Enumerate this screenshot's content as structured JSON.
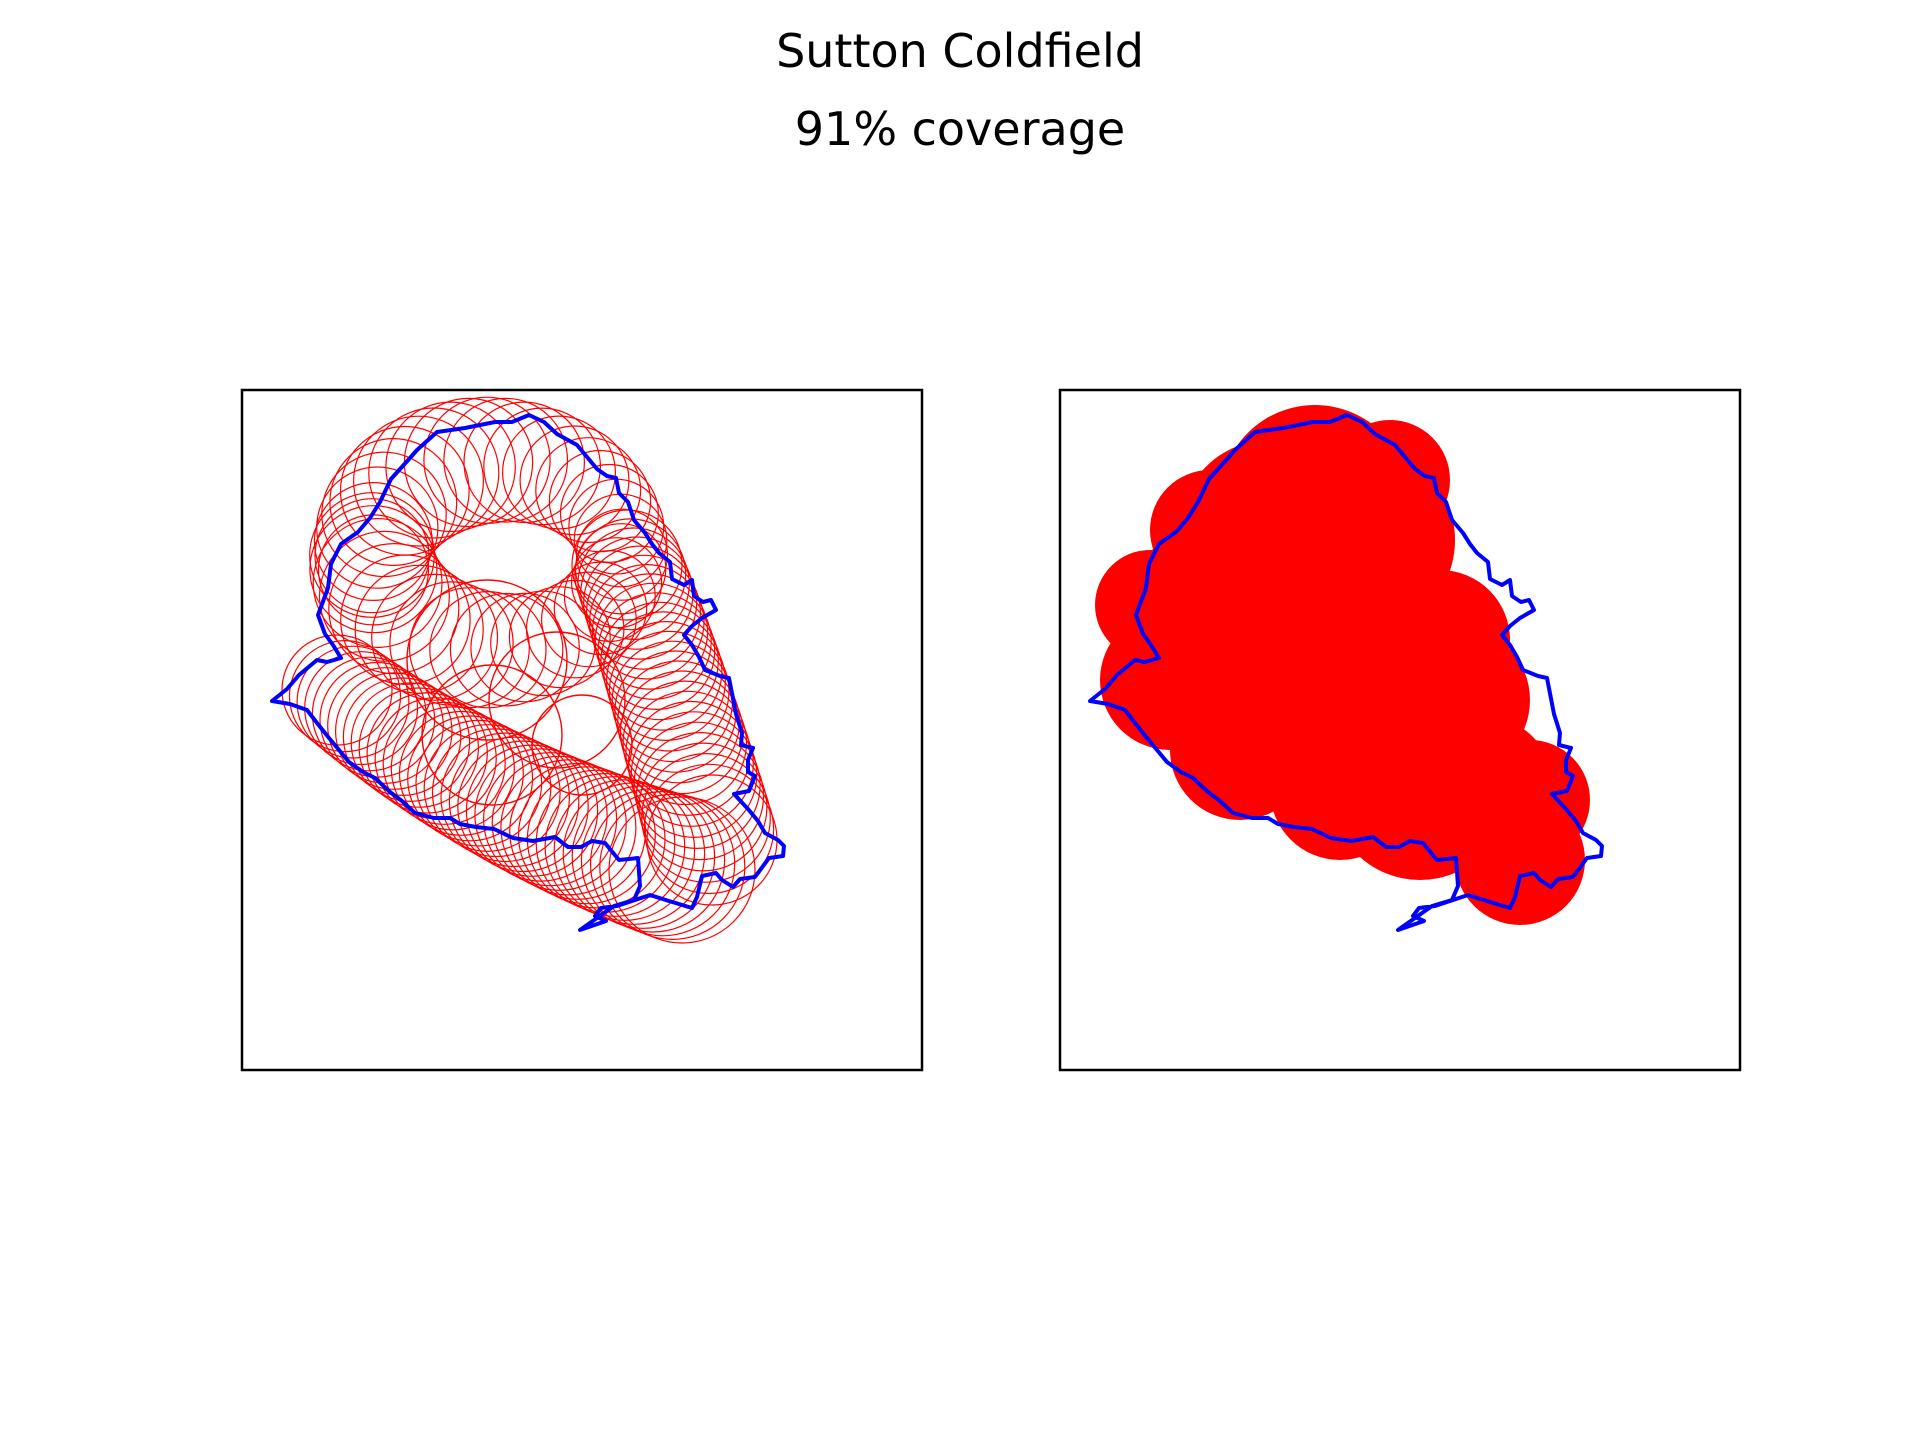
{
  "figure": {
    "title": "Sutton Coldfield",
    "subtitle": "91% coverage"
  },
  "colors": {
    "boundary": "#0000ff",
    "coverage": "#ff0000",
    "frame": "#000000",
    "background": "#ffffff"
  },
  "panels": [
    {
      "name": "circles-outline",
      "circle_style": "outline"
    },
    {
      "name": "circles-filled",
      "circle_style": "filled"
    }
  ]
}
